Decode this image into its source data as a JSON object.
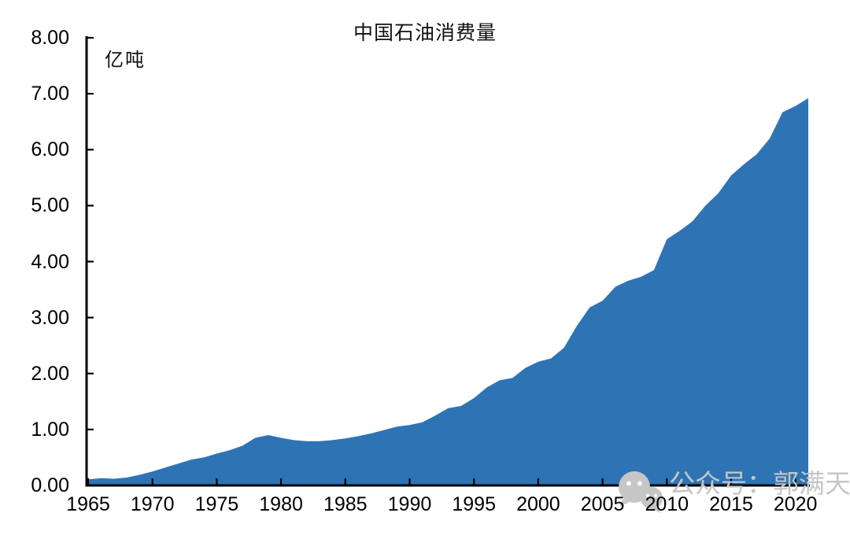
{
  "chart": {
    "title": "中国石油消费量",
    "unit_label": "亿吨",
    "colors": {
      "area": "#2E74B5",
      "axis": "#000000",
      "watermark": "#C6C6C6"
    }
  },
  "watermark": {
    "icon": "wechat-icon",
    "text": "公众号：郭满天"
  },
  "chart_data": {
    "type": "area",
    "title": "中国石油消费量",
    "ylabel": "亿吨",
    "xlabel": "",
    "xlim": [
      1965,
      2021
    ],
    "ylim": [
      0,
      8
    ],
    "grid": false,
    "legend": "none",
    "series_color": "#2E74B5",
    "x": [
      1965,
      1966,
      1967,
      1968,
      1969,
      1970,
      1971,
      1972,
      1973,
      1974,
      1975,
      1976,
      1977,
      1978,
      1979,
      1980,
      1981,
      1982,
      1983,
      1984,
      1985,
      1986,
      1987,
      1988,
      1989,
      1990,
      1991,
      1992,
      1993,
      1994,
      1995,
      1996,
      1997,
      1998,
      1999,
      2000,
      2001,
      2002,
      2003,
      2004,
      2005,
      2006,
      2007,
      2008,
      2009,
      2010,
      2011,
      2012,
      2013,
      2014,
      2015,
      2016,
      2017,
      2018,
      2019,
      2020,
      2021
    ],
    "values": [
      0.11,
      0.13,
      0.12,
      0.14,
      0.19,
      0.25,
      0.32,
      0.39,
      0.46,
      0.5,
      0.57,
      0.63,
      0.71,
      0.85,
      0.9,
      0.85,
      0.81,
      0.79,
      0.79,
      0.81,
      0.84,
      0.88,
      0.93,
      0.99,
      1.05,
      1.08,
      1.13,
      1.25,
      1.38,
      1.42,
      1.56,
      1.75,
      1.88,
      1.92,
      2.1,
      2.21,
      2.27,
      2.46,
      2.85,
      3.18,
      3.3,
      3.55,
      3.66,
      3.73,
      3.85,
      4.4,
      4.55,
      4.72,
      5.0,
      5.22,
      5.54,
      5.74,
      5.92,
      6.2,
      6.67,
      6.78,
      6.92
    ],
    "y_ticks": [
      0,
      1,
      2,
      3,
      4,
      5,
      6,
      7,
      8
    ],
    "y_tick_labels": [
      "0.00",
      "1.00",
      "2.00",
      "3.00",
      "4.00",
      "5.00",
      "6.00",
      "7.00",
      "8.00"
    ],
    "x_ticks": [
      1965,
      1970,
      1975,
      1980,
      1985,
      1990,
      1995,
      2000,
      2005,
      2010,
      2015,
      2020
    ]
  }
}
